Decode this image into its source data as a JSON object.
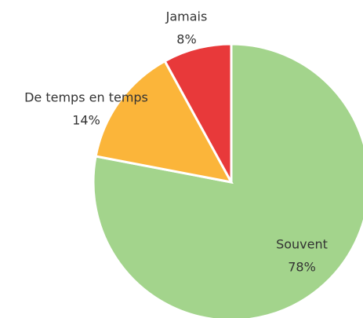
{
  "chart_data": {
    "type": "pie",
    "categories": [
      "Souvent",
      "De temps en temps",
      "Jamais"
    ],
    "values": [
      78,
      14,
      8
    ],
    "value_labels": [
      "78%",
      "14%",
      "8%"
    ],
    "colors": [
      "#a3d48c",
      "#fbb53a",
      "#e8393a"
    ]
  }
}
